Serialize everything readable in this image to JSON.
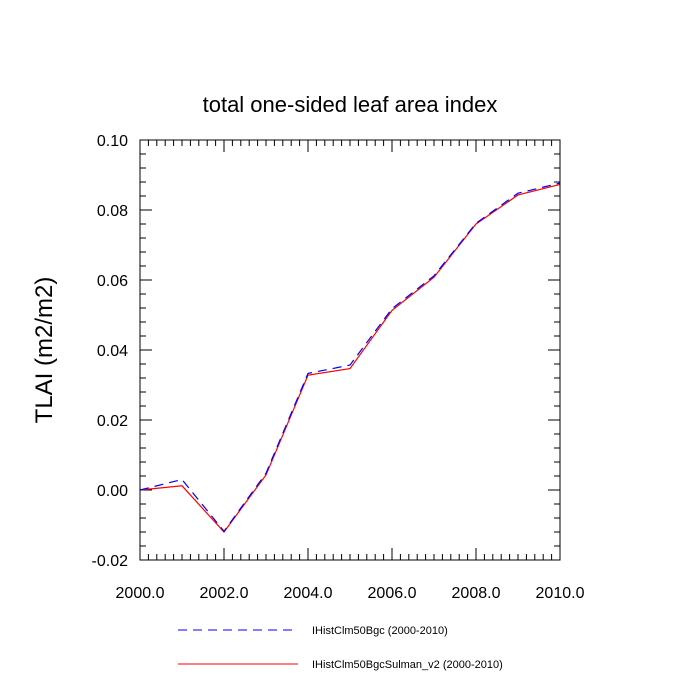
{
  "chart_data": {
    "type": "line",
    "title": "total one-sided leaf area index",
    "xlabel": "",
    "ylabel": "TLAI  (m2/m2)",
    "xlim": [
      2000,
      2010
    ],
    "ylim": [
      -0.02,
      0.1
    ],
    "xticks": [
      2000,
      2002,
      2004,
      2006,
      2008,
      2010
    ],
    "xtick_labels": [
      "2000.0",
      "2002.0",
      "2004.0",
      "2006.0",
      "2008.0",
      "2010.0"
    ],
    "yticks": [
      -0.02,
      0.0,
      0.02,
      0.04,
      0.06,
      0.08,
      0.1
    ],
    "ytick_labels": [
      "-0.02",
      "0.00",
      "0.02",
      "0.04",
      "0.06",
      "0.08",
      "0.10"
    ],
    "grid": false,
    "legend_position": "bottom",
    "x": [
      2000,
      2001,
      2002,
      2003,
      2004,
      2005,
      2006,
      2007,
      2008,
      2009,
      2010
    ],
    "series": [
      {
        "name": "IHistClm50Bgc (2000-2010)",
        "color": "#0000ff",
        "dash": "dashed",
        "values": [
          0.0,
          0.003,
          -0.0118,
          0.0048,
          0.0333,
          0.0357,
          0.0518,
          0.0612,
          0.0762,
          0.0848,
          0.0877
        ]
      },
      {
        "name": "IHistClm50BgcSulman_v2 (2000-2010)",
        "color": "#ff0000",
        "dash": "solid",
        "values": [
          0.0,
          0.0012,
          -0.012,
          0.0043,
          0.0328,
          0.0347,
          0.0513,
          0.0608,
          0.076,
          0.0843,
          0.0873
        ]
      }
    ]
  }
}
